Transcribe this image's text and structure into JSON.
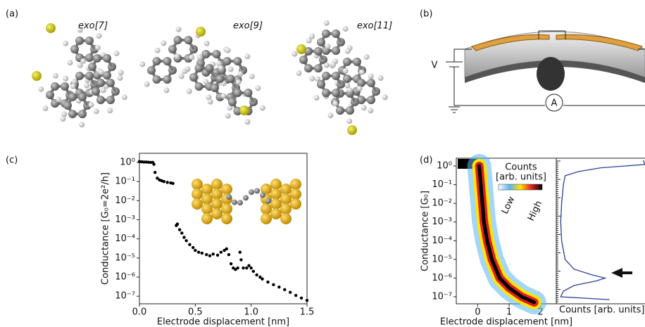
{
  "panel_labels": [
    "(a)",
    "(b)",
    "(c)",
    "(d)"
  ],
  "molecules": [
    "exo[7]",
    "exo[9]",
    "exo[11]"
  ],
  "circuit": {
    "voltage": "V",
    "ammeter": "A"
  },
  "chart_data": [
    {
      "type": "scatter",
      "xlabel": "Electrode displacement [nm]",
      "ylabel": "Conductance [G₀=2e²/h]",
      "color": "#000000",
      "log_y": true,
      "x": [
        0,
        0.02,
        0.04,
        0.06,
        0.08,
        0.1,
        0.12,
        0.13,
        0.14,
        0.16,
        0.18,
        0.2,
        0.22,
        0.25,
        0.28,
        0.3,
        0.33,
        0.34,
        0.36,
        0.38,
        0.4,
        0.42,
        0.45,
        0.48,
        0.5,
        0.53,
        0.56,
        0.6,
        0.63,
        0.66,
        0.7,
        0.73,
        0.76,
        0.78,
        0.8,
        0.82,
        0.84,
        0.86,
        0.88,
        0.9,
        0.91,
        0.93,
        0.96,
        0.98,
        1.0,
        1.02,
        1.05,
        1.08,
        1.1,
        1.15,
        1.2,
        1.25,
        1.3,
        1.35,
        1.4,
        1.45,
        1.5
      ],
      "values": [
        1.1,
        1.08,
        1.05,
        1.05,
        1.02,
        1.0,
        1.0,
        0.8,
        0.3,
        0.15,
        0.12,
        0.11,
        0.1,
        0.09,
        0.085,
        0.08,
        0.0005,
        0.0006,
        0.0003,
        0.0002,
        0.00012,
        8e-05,
        5e-05,
        3.5e-05,
        2.5e-05,
        2e-05,
        1.8e-05,
        1.5e-05,
        1.3e-05,
        1.6e-05,
        1.4e-05,
        2e-05,
        2.5e-05,
        3e-05,
        1.5e-05,
        5e-06,
        3e-06,
        2.5e-06,
        3e-06,
        2e-05,
        8e-06,
        3e-06,
        3e-06,
        4e-06,
        3e-06,
        2e-06,
        1.3e-06,
        1e-06,
        8e-07,
        5.5e-07,
        4e-07,
        3e-07,
        2.2e-07,
        1.6e-07,
        1.1e-07,
        8e-08,
        6e-08
      ],
      "xlim": [
        0,
        1.5
      ],
      "ylim": [
        4e-08,
        3
      ],
      "xticks": [
        {
          "value": 0,
          "label": "0.0"
        },
        {
          "value": 0.5,
          "label": "0.5"
        },
        {
          "value": 1,
          "label": "1.0"
        },
        {
          "value": 1.5,
          "label": "1.5"
        }
      ],
      "yticks": [
        {
          "value": 1,
          "label": "10⁰"
        },
        {
          "value": 0.1,
          "label": "10⁻¹"
        },
        {
          "value": 0.01,
          "label": "10⁻²"
        },
        {
          "value": 0.001,
          "label": "10⁻³"
        },
        {
          "value": 0.0001,
          "label": "10⁻⁴"
        },
        {
          "value": 1e-05,
          "label": "10⁻⁵"
        },
        {
          "value": 1e-06,
          "label": "10⁻⁶"
        },
        {
          "value": 1e-07,
          "label": "10⁻⁷"
        }
      ]
    },
    {
      "type": "density",
      "xlabel": "Electrode displacement [nm]",
      "ylabel": "Conductance [G₀]",
      "log_y": true,
      "colormap": [
        "#ffffff",
        "#5ab4f0",
        "#ffe600",
        "#e02020",
        "#000000"
      ],
      "colorbar_title": [
        "Counts",
        "[arb. units]"
      ],
      "colorbar_low": "Low",
      "colorbar_high": "High",
      "x": [
        0.05,
        0.1,
        0.2,
        0.3,
        0.45,
        0.7,
        1.0,
        1.4,
        1.8
      ],
      "values": [
        1,
        0.1,
        0.001,
        0.0001,
        1e-05,
        1e-06,
        3e-07,
        1e-07,
        5e-08
      ],
      "xlim": [
        -0.68,
        2.5
      ],
      "ylim": [
        4.2e-08,
        2.6
      ],
      "xticks": [
        0,
        1,
        2
      ],
      "yticks": [
        {
          "value": 1,
          "label": "10⁰"
        },
        {
          "value": 0.1,
          "label": "10⁻¹"
        },
        {
          "value": 0.01,
          "label": "10⁻²"
        },
        {
          "value": 0.001,
          "label": "10⁻³"
        },
        {
          "value": 0.0001,
          "label": "10⁻⁴"
        },
        {
          "value": 1e-05,
          "label": "10⁻⁵"
        },
        {
          "value": 1e-06,
          "label": "10⁻⁶"
        },
        {
          "value": 1e-07,
          "label": "10⁻⁷"
        }
      ]
    },
    {
      "type": "histogram-line",
      "xlabel": "Counts [arb. units]",
      "color": "#2a3f9a",
      "xlim": [
        0,
        1
      ],
      "conductance": [
        2,
        1.2,
        0.8,
        0.5,
        0.3,
        0.1,
        0.01,
        0.001,
        0.0001,
        1e-05,
        3e-06,
        1.5e-06,
        1e-06,
        7e-07,
        4e-07,
        2e-07,
        1e-07,
        7e-08
      ],
      "counts": [
        0.98,
        1.0,
        0.5,
        0.25,
        0.1,
        0.08,
        0.06,
        0.05,
        0.06,
        0.1,
        0.2,
        0.4,
        0.55,
        0.45,
        0.2,
        0.08,
        0.05,
        0.6
      ]
    }
  ]
}
